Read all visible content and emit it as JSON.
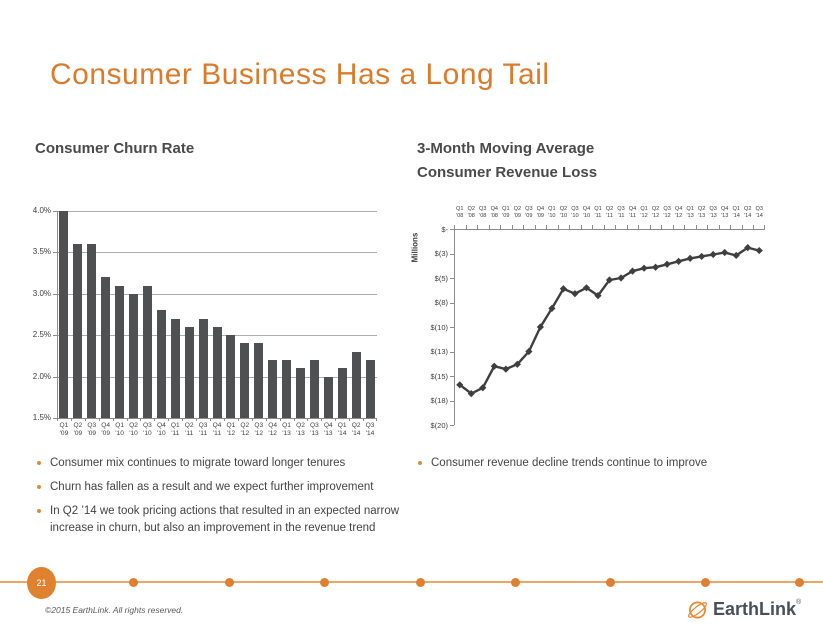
{
  "slide": {
    "title": "Consumer Business Has a Long Tail",
    "page_number": "21",
    "footer": "©2015 EarthLink. All rights reserved.",
    "logo_text": "EarthLink",
    "logo_reg": "®"
  },
  "left_panel": {
    "chart_title": "Consumer Churn Rate",
    "bullets": [
      "Consumer mix continues to migrate toward longer tenures",
      "Churn has fallen as a result and we expect further improvement",
      "In Q2 ’14 we took pricing actions that resulted in an expected narrow increase in churn, but also an improvement in the revenue trend"
    ]
  },
  "right_panel": {
    "chart_title_line1": "3-Month Moving Average",
    "chart_title_line2": "Consumer Revenue Loss",
    "bullets": [
      "Consumer revenue decline trends continue to improve"
    ]
  },
  "colors": {
    "accent_orange": "#DC7A2B",
    "badge_orange": "#E0812F",
    "timeline_orange": "#EBA766",
    "bar_gray": "#4F5052",
    "line_gray": "#3F3F3F",
    "axis_gray": "#8C8C8C",
    "text_gray": "#404040"
  },
  "chart_data": [
    {
      "type": "bar",
      "title": "Consumer Churn Rate",
      "quarter_labels": [
        "Q1",
        "Q2",
        "Q3",
        "Q4",
        "Q1",
        "Q2",
        "Q3",
        "Q4",
        "Q1",
        "Q2",
        "Q3",
        "Q4",
        "Q1",
        "Q2",
        "Q3",
        "Q4",
        "Q1",
        "Q2",
        "Q3",
        "Q4",
        "Q1",
        "Q2",
        "Q3"
      ],
      "year_labels": [
        "'09",
        "'09",
        "'09",
        "'09",
        "'10",
        "'10",
        "'10",
        "'10",
        "'11",
        "'11",
        "'11",
        "'11",
        "'12",
        "'12",
        "'12",
        "'12",
        "'13",
        "'13",
        "'13",
        "'13",
        "'14",
        "'14",
        "'14"
      ],
      "values": [
        4.0,
        3.6,
        3.6,
        3.2,
        3.1,
        3.0,
        3.1,
        2.8,
        2.7,
        2.6,
        2.7,
        2.6,
        2.5,
        2.4,
        2.4,
        2.2,
        2.2,
        2.1,
        2.2,
        2.0,
        2.1,
        2.3,
        2.2
      ],
      "ytick_labels": [
        "4.0%",
        "3.5%",
        "3.0%",
        "2.5%",
        "2.0%",
        "1.5%"
      ],
      "ytick_values": [
        4.0,
        3.5,
        3.0,
        2.5,
        2.0,
        1.5
      ],
      "ylim": [
        1.5,
        4.0
      ],
      "grid": "on",
      "legend": "none"
    },
    {
      "type": "line",
      "title": "3-Month Moving Average Consumer Revenue Loss",
      "ylabel": "Millions",
      "quarter_labels": [
        "Q1",
        "Q2",
        "Q3",
        "Q4",
        "Q1",
        "Q2",
        "Q3",
        "Q4",
        "Q1",
        "Q2",
        "Q3",
        "Q4",
        "Q1",
        "Q2",
        "Q3",
        "Q4",
        "Q1",
        "Q2",
        "Q3",
        "Q4",
        "Q1",
        "Q2",
        "Q3",
        "Q4",
        "Q1",
        "Q2",
        "Q3"
      ],
      "year_labels": [
        "'08",
        "'08",
        "'08",
        "'08",
        "'09",
        "'09",
        "'09",
        "'09",
        "'10",
        "'10",
        "'10",
        "'10",
        "'11",
        "'11",
        "'11",
        "'11",
        "'12",
        "'12",
        "'12",
        "'12",
        "'13",
        "'13",
        "'13",
        "'13",
        "'14",
        "'14",
        "'14"
      ],
      "values": [
        -15.9,
        -16.8,
        -16.2,
        -14.0,
        -14.3,
        -13.8,
        -12.5,
        -10.0,
        -8.1,
        -6.1,
        -6.6,
        -6.0,
        -6.8,
        -5.2,
        -5.0,
        -4.3,
        -4.0,
        -3.9,
        -3.6,
        -3.3,
        -3.0,
        -2.8,
        -2.6,
        -2.4,
        -2.7,
        -1.9,
        -2.2
      ],
      "ytick_labels": [
        "$-",
        "$(3)",
        "$(5)",
        "$(8)",
        "$(10)",
        "$(13)",
        "$(15)",
        "$(18)",
        "$(20)"
      ],
      "ytick_values": [
        0,
        -2.5,
        -5,
        -7.5,
        -10,
        -12.5,
        -15,
        -17.5,
        -20
      ],
      "ylim": [
        -20,
        0
      ],
      "marker": "diamond",
      "grid": "off",
      "legend": "none"
    }
  ]
}
